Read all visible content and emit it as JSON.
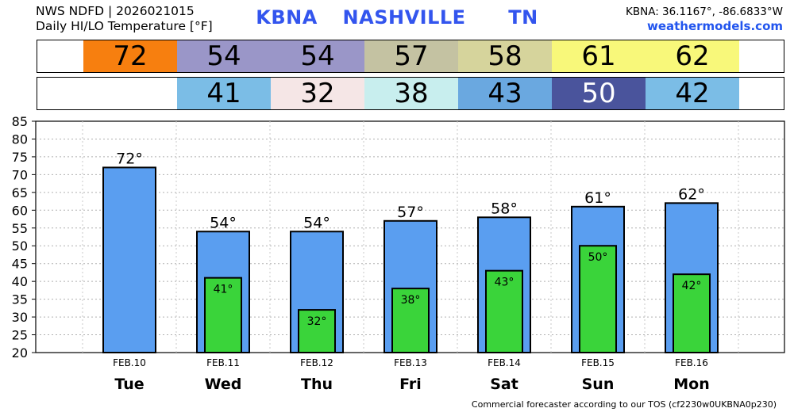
{
  "header": {
    "line1": "NWS NDFD | 2026021015",
    "line2": "Daily HI/LO Temperature [°F]",
    "station": "KBNA",
    "city": "NASHVILLE",
    "state": "TN",
    "coords": "KBNA: 36.1167°, -86.6833°W",
    "site": "weathermodels.com"
  },
  "footer": "Commercial forecaster according to our TOS (cf2230w0UKBNA0p230)",
  "colors": {
    "hi_bar": "#5a9ef0",
    "lo_bar": "#3ad43a",
    "hi_strip": [
      "#f77f0f",
      "#9a96c8",
      "#9a96c8",
      "#c4c2a2",
      "#d6d49c",
      "#f8f87a",
      "#f8f87a"
    ],
    "lo_strip": [
      "#7bbde6",
      "#f5e6e6",
      "#c8eeee",
      "#6aa8e0",
      "#4a549c",
      "#7bbde6"
    ]
  },
  "hi_strip": [
    "72",
    "54",
    "54",
    "57",
    "58",
    "61",
    "62"
  ],
  "lo_strip": [
    "41",
    "32",
    "38",
    "43",
    "50",
    "42"
  ],
  "chart_data": {
    "type": "bar",
    "categories": [
      "Tue",
      "Wed",
      "Thu",
      "Fri",
      "Sat",
      "Sun",
      "Mon"
    ],
    "dates": [
      "FEB.10",
      "FEB.11",
      "FEB.12",
      "FEB.13",
      "FEB.14",
      "FEB.15",
      "FEB.16"
    ],
    "series": [
      {
        "values": [
          72,
          54,
          54,
          57,
          58,
          61,
          62
        ],
        "labels": [
          "72°",
          "54°",
          "54°",
          "57°",
          "58°",
          "61°",
          "62°"
        ]
      },
      {
        "values": [
          null,
          41,
          32,
          38,
          43,
          50,
          42
        ],
        "labels": [
          "",
          "41°",
          "32°",
          "38°",
          "43°",
          "50°",
          "42°"
        ]
      }
    ],
    "ylim": [
      20,
      85
    ],
    "yticks": [
      20,
      25,
      30,
      35,
      40,
      45,
      50,
      55,
      60,
      65,
      70,
      75,
      80,
      85
    ],
    "grid": true
  }
}
